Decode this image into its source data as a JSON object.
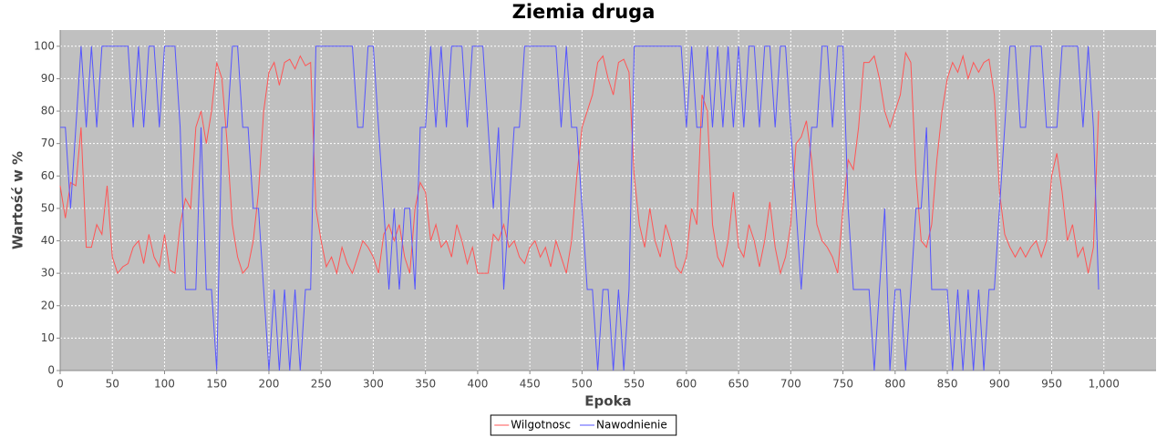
{
  "chart_data": {
    "type": "line",
    "title": "Ziemia druga",
    "x_label": "Epoka",
    "y_label": "Wartość w %",
    "xlim": [
      0,
      1050
    ],
    "ylim": [
      0,
      105
    ],
    "xticks": [
      0,
      50,
      100,
      150,
      200,
      250,
      300,
      350,
      400,
      450,
      500,
      550,
      600,
      650,
      700,
      750,
      800,
      850,
      900,
      950,
      {
        "value": 1000,
        "label": "1,000"
      }
    ],
    "yticks": [
      0,
      10,
      20,
      30,
      40,
      50,
      60,
      70,
      80,
      90,
      100
    ],
    "grid": true,
    "legend": "bottom",
    "x": [
      0,
      5,
      10,
      15,
      20,
      25,
      30,
      35,
      40,
      45,
      50,
      55,
      60,
      65,
      70,
      75,
      80,
      85,
      90,
      95,
      100,
      105,
      110,
      115,
      120,
      125,
      130,
      135,
      140,
      145,
      150,
      155,
      160,
      165,
      170,
      175,
      180,
      185,
      190,
      195,
      200,
      205,
      210,
      215,
      220,
      225,
      230,
      235,
      240,
      245,
      250,
      255,
      260,
      265,
      270,
      275,
      280,
      285,
      290,
      295,
      300,
      305,
      310,
      315,
      320,
      325,
      330,
      335,
      340,
      345,
      350,
      355,
      360,
      365,
      370,
      375,
      380,
      385,
      390,
      395,
      400,
      405,
      410,
      415,
      420,
      425,
      430,
      435,
      440,
      445,
      450,
      455,
      460,
      465,
      470,
      475,
      480,
      485,
      490,
      495,
      500,
      505,
      510,
      515,
      520,
      525,
      530,
      535,
      540,
      545,
      550,
      555,
      560,
      565,
      570,
      575,
      580,
      585,
      590,
      595,
      600,
      605,
      610,
      615,
      620,
      625,
      630,
      635,
      640,
      645,
      650,
      655,
      660,
      665,
      670,
      675,
      680,
      685,
      690,
      695,
      700,
      705,
      710,
      715,
      720,
      725,
      730,
      735,
      740,
      745,
      750,
      755,
      760,
      765,
      770,
      775,
      780,
      785,
      790,
      795,
      800,
      805,
      810,
      815,
      820,
      825,
      830,
      835,
      840,
      845,
      850,
      855,
      860,
      865,
      870,
      875,
      880,
      885,
      890,
      895,
      900,
      905,
      910,
      915,
      920,
      925,
      930,
      935,
      940,
      945,
      950,
      955,
      960,
      965,
      970,
      975,
      980,
      985,
      990,
      995
    ],
    "series": [
      {
        "name": "Wilgotnosc",
        "color": "#ff5555",
        "values": [
          57,
          47,
          58,
          57,
          75,
          38,
          38,
          45,
          42,
          57,
          35,
          30,
          32,
          33,
          38,
          40,
          33,
          42,
          35,
          32,
          42,
          31,
          30,
          45,
          53,
          50,
          75,
          80,
          70,
          80,
          95,
          90,
          70,
          45,
          35,
          30,
          32,
          40,
          55,
          80,
          92,
          95,
          88,
          95,
          96,
          93,
          97,
          94,
          95,
          50,
          40,
          32,
          35,
          30,
          38,
          33,
          30,
          35,
          40,
          38,
          35,
          30,
          42,
          45,
          40,
          45,
          35,
          30,
          50,
          58,
          55,
          40,
          45,
          38,
          40,
          35,
          45,
          40,
          33,
          38,
          30,
          30,
          30,
          42,
          40,
          45,
          38,
          40,
          35,
          33,
          38,
          40,
          35,
          38,
          32,
          40,
          35,
          30,
          40,
          60,
          75,
          80,
          85,
          95,
          97,
          90,
          85,
          95,
          96,
          92,
          60,
          45,
          38,
          50,
          40,
          35,
          45,
          40,
          32,
          30,
          35,
          50,
          45,
          85,
          80,
          45,
          35,
          32,
          40,
          55,
          38,
          35,
          45,
          40,
          32,
          40,
          52,
          38,
          30,
          35,
          45,
          70,
          72,
          77,
          65,
          45,
          40,
          38,
          35,
          30,
          50,
          65,
          62,
          75,
          95,
          95,
          97,
          90,
          80,
          75,
          80,
          85,
          98,
          95,
          60,
          40,
          38,
          45,
          65,
          80,
          90,
          95,
          92,
          97,
          90,
          95,
          92,
          95,
          96,
          85,
          55,
          42,
          38,
          35,
          38,
          35,
          38,
          40,
          35,
          40,
          60,
          67,
          55,
          40,
          45,
          35,
          38,
          30,
          38,
          80
        ]
      },
      {
        "name": "Nawodnienie",
        "color": "#5555ff",
        "values": [
          75,
          75,
          50,
          75,
          100,
          75,
          100,
          75,
          100,
          100,
          100,
          100,
          100,
          100,
          75,
          100,
          75,
          100,
          100,
          75,
          100,
          100,
          100,
          75,
          25,
          25,
          25,
          75,
          25,
          25,
          0,
          75,
          75,
          100,
          100,
          75,
          75,
          50,
          50,
          25,
          0,
          25,
          0,
          25,
          0,
          25,
          0,
          25,
          25,
          100,
          100,
          100,
          100,
          100,
          100,
          100,
          100,
          75,
          75,
          100,
          100,
          75,
          50,
          25,
          50,
          25,
          50,
          50,
          25,
          75,
          75,
          100,
          75,
          100,
          75,
          100,
          100,
          100,
          75,
          100,
          100,
          100,
          75,
          50,
          75,
          25,
          50,
          75,
          75,
          100,
          100,
          100,
          100,
          100,
          100,
          100,
          75,
          100,
          75,
          75,
          50,
          25,
          25,
          0,
          25,
          25,
          0,
          25,
          0,
          25,
          100,
          100,
          100,
          100,
          100,
          100,
          100,
          100,
          100,
          100,
          75,
          100,
          75,
          75,
          100,
          75,
          100,
          75,
          100,
          75,
          100,
          75,
          100,
          100,
          75,
          100,
          100,
          75,
          100,
          100,
          75,
          50,
          25,
          50,
          75,
          75,
          100,
          100,
          75,
          100,
          100,
          50,
          25,
          25,
          25,
          25,
          0,
          25,
          50,
          0,
          25,
          25,
          0,
          25,
          50,
          50,
          75,
          25,
          25,
          25,
          25,
          0,
          25,
          0,
          25,
          0,
          25,
          0,
          25,
          25,
          50,
          75,
          100,
          100,
          75,
          75,
          100,
          100,
          100,
          75,
          75,
          75,
          100,
          100,
          100,
          100,
          75,
          100,
          75,
          25
        ]
      }
    ]
  }
}
